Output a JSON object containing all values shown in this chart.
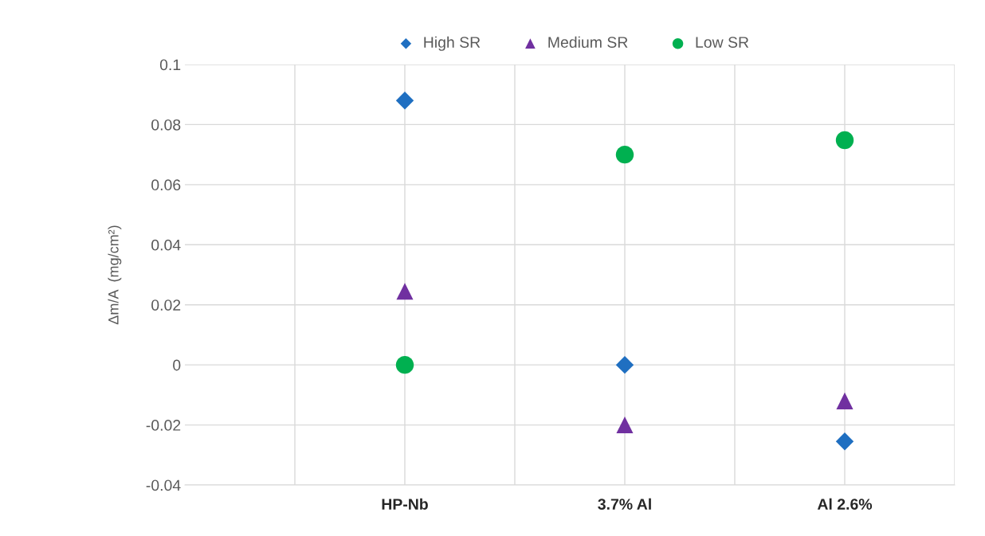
{
  "chart_data": {
    "type": "scatter",
    "ylabel": "Δm/A  (mg/cm²)",
    "categories": [
      "HP-Nb",
      "3.7% Al",
      "Al 2.6%"
    ],
    "series": [
      {
        "name": "High SR",
        "color": "#1f6fc1",
        "marker": "diamond",
        "values": [
          0.088,
          0,
          -0.0255
        ]
      },
      {
        "name": "Medium SR",
        "color": "#7030a0",
        "marker": "triangle",
        "values": [
          0.0245,
          -0.02,
          -0.012
        ]
      },
      {
        "name": "Low SR",
        "color": "#00b050",
        "marker": "circle",
        "values": [
          0,
          0.07,
          0.0748
        ]
      }
    ],
    "ylim": [
      -0.04,
      0.1
    ],
    "yticks": [
      -0.04,
      -0.02,
      0,
      0.02,
      0.04,
      0.06,
      0.08,
      0.1
    ],
    "grid": true,
    "legend": "top"
  }
}
